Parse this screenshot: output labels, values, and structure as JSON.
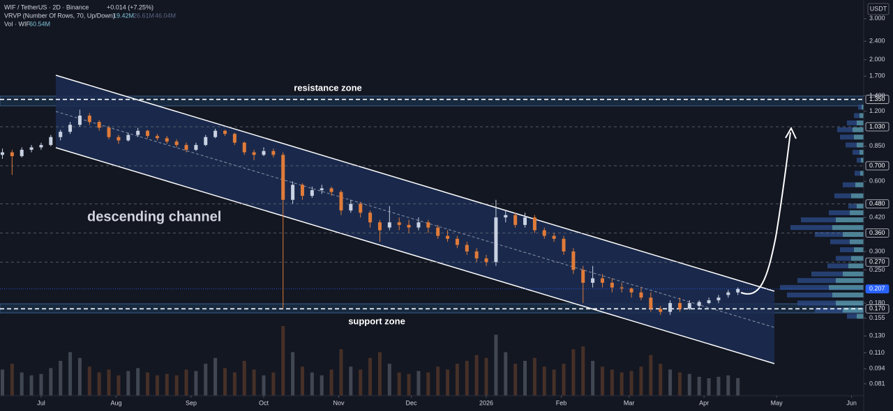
{
  "header": {
    "symbol": "WIF / TetherUS · 2D · Binance",
    "change": "+0.014 (+7.25%)",
    "vrvp": "VRVP (Number Of Rows, 70, Up/Down)",
    "vrvp_values": [
      "19.42M",
      "26.61M",
      "46.04M"
    ],
    "vol": "Vol · WIF",
    "vol_value": "60.54M",
    "currency": "USDT"
  },
  "chart_data": {
    "type": "candlestick",
    "log_scale": true,
    "annotation": "descending channel",
    "up_color": "#c9d2e3",
    "down_color": "#e07b39",
    "x": [
      -16,
      -12,
      -8,
      -4,
      0,
      4,
      8,
      12,
      16,
      20,
      24,
      28,
      32,
      36,
      40,
      44,
      48,
      52,
      56,
      60,
      64,
      68,
      72,
      76,
      80,
      84,
      88,
      92,
      96,
      100,
      104,
      108,
      112,
      116,
      120,
      124,
      128,
      132,
      136,
      140,
      144,
      148,
      152,
      156,
      160,
      164,
      168,
      172,
      176,
      180,
      184,
      188,
      192,
      196,
      200,
      204,
      208,
      212,
      216,
      220,
      224,
      228,
      232,
      236,
      240,
      244,
      248,
      252,
      256,
      260,
      264,
      268,
      272,
      276,
      280,
      284,
      288
    ],
    "ohlc": [
      [
        0.78,
        0.83,
        0.75,
        0.8
      ],
      [
        0.8,
        0.82,
        0.64,
        0.77
      ],
      [
        0.77,
        0.84,
        0.76,
        0.82
      ],
      [
        0.82,
        0.86,
        0.8,
        0.84
      ],
      [
        0.84,
        0.88,
        0.82,
        0.86
      ],
      [
        0.86,
        0.95,
        0.85,
        0.93
      ],
      [
        0.93,
        1.0,
        0.9,
        0.98
      ],
      [
        0.98,
        1.08,
        0.96,
        1.05
      ],
      [
        1.05,
        1.22,
        1.03,
        1.15
      ],
      [
        1.15,
        1.18,
        1.05,
        1.08
      ],
      [
        1.08,
        1.1,
        0.99,
        1.02
      ],
      [
        1.02,
        1.04,
        0.91,
        0.93
      ],
      [
        0.93,
        0.95,
        0.87,
        0.9
      ],
      [
        0.9,
        0.97,
        0.89,
        0.95
      ],
      [
        0.95,
        1.02,
        0.93,
        0.99
      ],
      [
        0.99,
        1.0,
        0.92,
        0.94
      ],
      [
        0.94,
        0.96,
        0.9,
        0.92
      ],
      [
        0.92,
        0.94,
        0.87,
        0.89
      ],
      [
        0.89,
        0.91,
        0.84,
        0.86
      ],
      [
        0.86,
        0.88,
        0.8,
        0.82
      ],
      [
        0.82,
        0.88,
        0.81,
        0.86
      ],
      [
        0.86,
        0.95,
        0.85,
        0.93
      ],
      [
        0.93,
        1.01,
        0.92,
        0.99
      ],
      [
        0.99,
        1.0,
        0.94,
        0.96
      ],
      [
        0.96,
        0.97,
        0.86,
        0.88
      ],
      [
        0.88,
        0.89,
        0.78,
        0.8
      ],
      [
        0.8,
        0.82,
        0.74,
        0.78
      ],
      [
        0.78,
        0.84,
        0.77,
        0.81
      ],
      [
        0.81,
        0.83,
        0.76,
        0.78
      ],
      [
        0.78,
        0.8,
        0.17,
        0.5
      ],
      [
        0.5,
        0.6,
        0.48,
        0.58
      ],
      [
        0.58,
        0.59,
        0.5,
        0.52
      ],
      [
        0.52,
        0.57,
        0.51,
        0.55
      ],
      [
        0.55,
        0.58,
        0.53,
        0.56
      ],
      [
        0.56,
        0.57,
        0.52,
        0.54
      ],
      [
        0.54,
        0.55,
        0.43,
        0.45
      ],
      [
        0.45,
        0.5,
        0.44,
        0.48
      ],
      [
        0.48,
        0.49,
        0.42,
        0.44
      ],
      [
        0.44,
        0.45,
        0.38,
        0.4
      ],
      [
        0.4,
        0.41,
        0.33,
        0.37
      ],
      [
        0.38,
        0.47,
        0.37,
        0.4
      ],
      [
        0.4,
        0.42,
        0.37,
        0.39
      ],
      [
        0.39,
        0.41,
        0.36,
        0.38
      ],
      [
        0.38,
        0.42,
        0.37,
        0.4
      ],
      [
        0.4,
        0.41,
        0.36,
        0.38
      ],
      [
        0.38,
        0.39,
        0.34,
        0.35
      ],
      [
        0.35,
        0.37,
        0.33,
        0.34
      ],
      [
        0.34,
        0.35,
        0.31,
        0.32
      ],
      [
        0.32,
        0.33,
        0.29,
        0.3
      ],
      [
        0.3,
        0.31,
        0.27,
        0.28
      ],
      [
        0.28,
        0.29,
        0.26,
        0.27
      ],
      [
        0.27,
        0.5,
        0.26,
        0.42
      ],
      [
        0.42,
        0.45,
        0.4,
        0.43
      ],
      [
        0.43,
        0.44,
        0.38,
        0.39
      ],
      [
        0.39,
        0.44,
        0.38,
        0.42
      ],
      [
        0.42,
        0.43,
        0.36,
        0.37
      ],
      [
        0.37,
        0.38,
        0.34,
        0.35
      ],
      [
        0.35,
        0.36,
        0.33,
        0.34
      ],
      [
        0.34,
        0.35,
        0.29,
        0.3
      ],
      [
        0.3,
        0.31,
        0.24,
        0.25
      ],
      [
        0.25,
        0.26,
        0.18,
        0.22
      ],
      [
        0.22,
        0.26,
        0.21,
        0.23
      ],
      [
        0.23,
        0.24,
        0.21,
        0.22
      ],
      [
        0.22,
        0.23,
        0.2,
        0.21
      ],
      [
        0.21,
        0.22,
        0.2,
        0.208
      ],
      [
        0.208,
        0.21,
        0.19,
        0.2
      ],
      [
        0.2,
        0.21,
        0.185,
        0.19
      ],
      [
        0.19,
        0.2,
        0.165,
        0.17
      ],
      [
        0.17,
        0.175,
        0.16,
        0.165
      ],
      [
        0.165,
        0.185,
        0.16,
        0.18
      ],
      [
        0.18,
        0.19,
        0.165,
        0.17
      ],
      [
        0.17,
        0.185,
        0.168,
        0.18
      ],
      [
        0.175,
        0.185,
        0.17,
        0.182
      ],
      [
        0.18,
        0.19,
        0.178,
        0.185
      ],
      [
        0.185,
        0.195,
        0.18,
        0.19
      ],
      [
        0.195,
        0.205,
        0.19,
        0.2
      ],
      [
        0.2,
        0.21,
        0.195,
        0.207
      ]
    ],
    "volume": [
      90,
      110,
      80,
      70,
      75,
      95,
      120,
      150,
      130,
      100,
      80,
      90,
      70,
      85,
      95,
      80,
      70,
      75,
      70,
      90,
      85,
      110,
      130,
      95,
      80,
      120,
      90,
      70,
      80,
      240,
      150,
      100,
      80,
      70,
      90,
      160,
      100,
      90,
      130,
      150,
      110,
      80,
      75,
      85,
      80,
      100,
      90,
      110,
      120,
      140,
      130,
      210,
      150,
      110,
      120,
      130,
      100,
      90,
      110,
      160,
      170,
      120,
      100,
      90,
      80,
      85,
      100,
      140,
      110,
      90,
      80,
      75,
      65,
      60,
      65,
      70,
      60.54
    ],
    "volume_lim": [
      0,
      600
    ],
    "xlim": [
      -17,
      340
    ],
    "xticks": [
      {
        "value": 0,
        "label": "Jul"
      },
      {
        "value": 31,
        "label": "Aug"
      },
      {
        "value": 62,
        "label": "Sep"
      },
      {
        "value": 92,
        "label": "Oct"
      },
      {
        "value": 123,
        "label": "Nov"
      },
      {
        "value": 153,
        "label": "Dec"
      },
      {
        "value": 184,
        "label": "2026"
      },
      {
        "value": 215,
        "label": "Feb"
      },
      {
        "value": 243,
        "label": "Mar"
      },
      {
        "value": 274,
        "label": "Apr"
      },
      {
        "value": 304,
        "label": "May"
      },
      {
        "value": 335,
        "label": "Jun"
      }
    ],
    "ylim": [
      0.072,
      3.61
    ],
    "yticks": [
      {
        "value": 3,
        "label": "3.000"
      },
      {
        "value": 2.4,
        "label": "2.400"
      },
      {
        "value": 2,
        "label": "2.000"
      },
      {
        "value": 1.7,
        "label": "1.700"
      },
      {
        "value": 1.4,
        "label": "1.400"
      },
      {
        "value": 1.2,
        "label": "1.200"
      },
      {
        "value": 0.85,
        "label": "0.850"
      },
      {
        "value": 0.6,
        "label": "0.600"
      },
      {
        "value": 0.42,
        "label": "0.420"
      },
      {
        "value": 0.3,
        "label": "0.300"
      },
      {
        "value": 0.25,
        "label": "0.250"
      },
      {
        "value": 0.18,
        "label": "0.180"
      },
      {
        "value": 0.155,
        "label": "0.155"
      },
      {
        "value": 0.13,
        "label": "0.130"
      },
      {
        "value": 0.11,
        "label": "0.110"
      },
      {
        "value": 0.094,
        "label": "0.094"
      },
      {
        "value": 0.081,
        "label": "0.081"
      }
    ],
    "levels": [
      {
        "value": 1.35,
        "label": "1.350",
        "style": "zone"
      },
      {
        "value": 1.03,
        "label": "1.030",
        "style": "level"
      },
      {
        "value": 0.7,
        "label": "0.700",
        "style": "level"
      },
      {
        "value": 0.48,
        "label": "0.480",
        "style": "level"
      },
      {
        "value": 0.36,
        "label": "0.360",
        "style": "level"
      },
      {
        "value": 0.27,
        "label": "0.270",
        "style": "level"
      },
      {
        "value": 0.207,
        "label": "0.207",
        "style": "last"
      },
      {
        "value": 0.17,
        "label": "0.170",
        "style": "zone"
      }
    ],
    "zones": [
      {
        "label": "resistance zone",
        "from": 1.267,
        "to": 1.395
      },
      {
        "label": "support zone",
        "from": 0.1633,
        "to": 0.1787
      }
    ],
    "volume_profile": {
      "up_color": "#5d9fb5",
      "down_color": "#2c4a86",
      "prices": [
        1.25,
        1.15,
        1.07,
        1.0,
        0.93,
        0.86,
        0.8,
        0.74,
        0.65,
        0.58,
        0.52,
        0.47,
        0.44,
        0.41,
        0.38,
        0.355,
        0.33,
        0.305,
        0.28,
        0.26,
        0.24,
        0.225,
        0.21,
        0.195,
        0.18,
        0.168,
        0.158
      ],
      "up": [
        3,
        6,
        10,
        16,
        14,
        10,
        6,
        4,
        5,
        12,
        18,
        10,
        20,
        40,
        45,
        30,
        20,
        14,
        18,
        22,
        30,
        40,
        50,
        45,
        40,
        30,
        10
      ],
      "down": [
        5,
        8,
        14,
        22,
        20,
        16,
        10,
        6,
        8,
        18,
        24,
        12,
        30,
        50,
        60,
        40,
        28,
        20,
        22,
        30,
        45,
        55,
        70,
        65,
        55,
        40,
        14
      ]
    }
  }
}
